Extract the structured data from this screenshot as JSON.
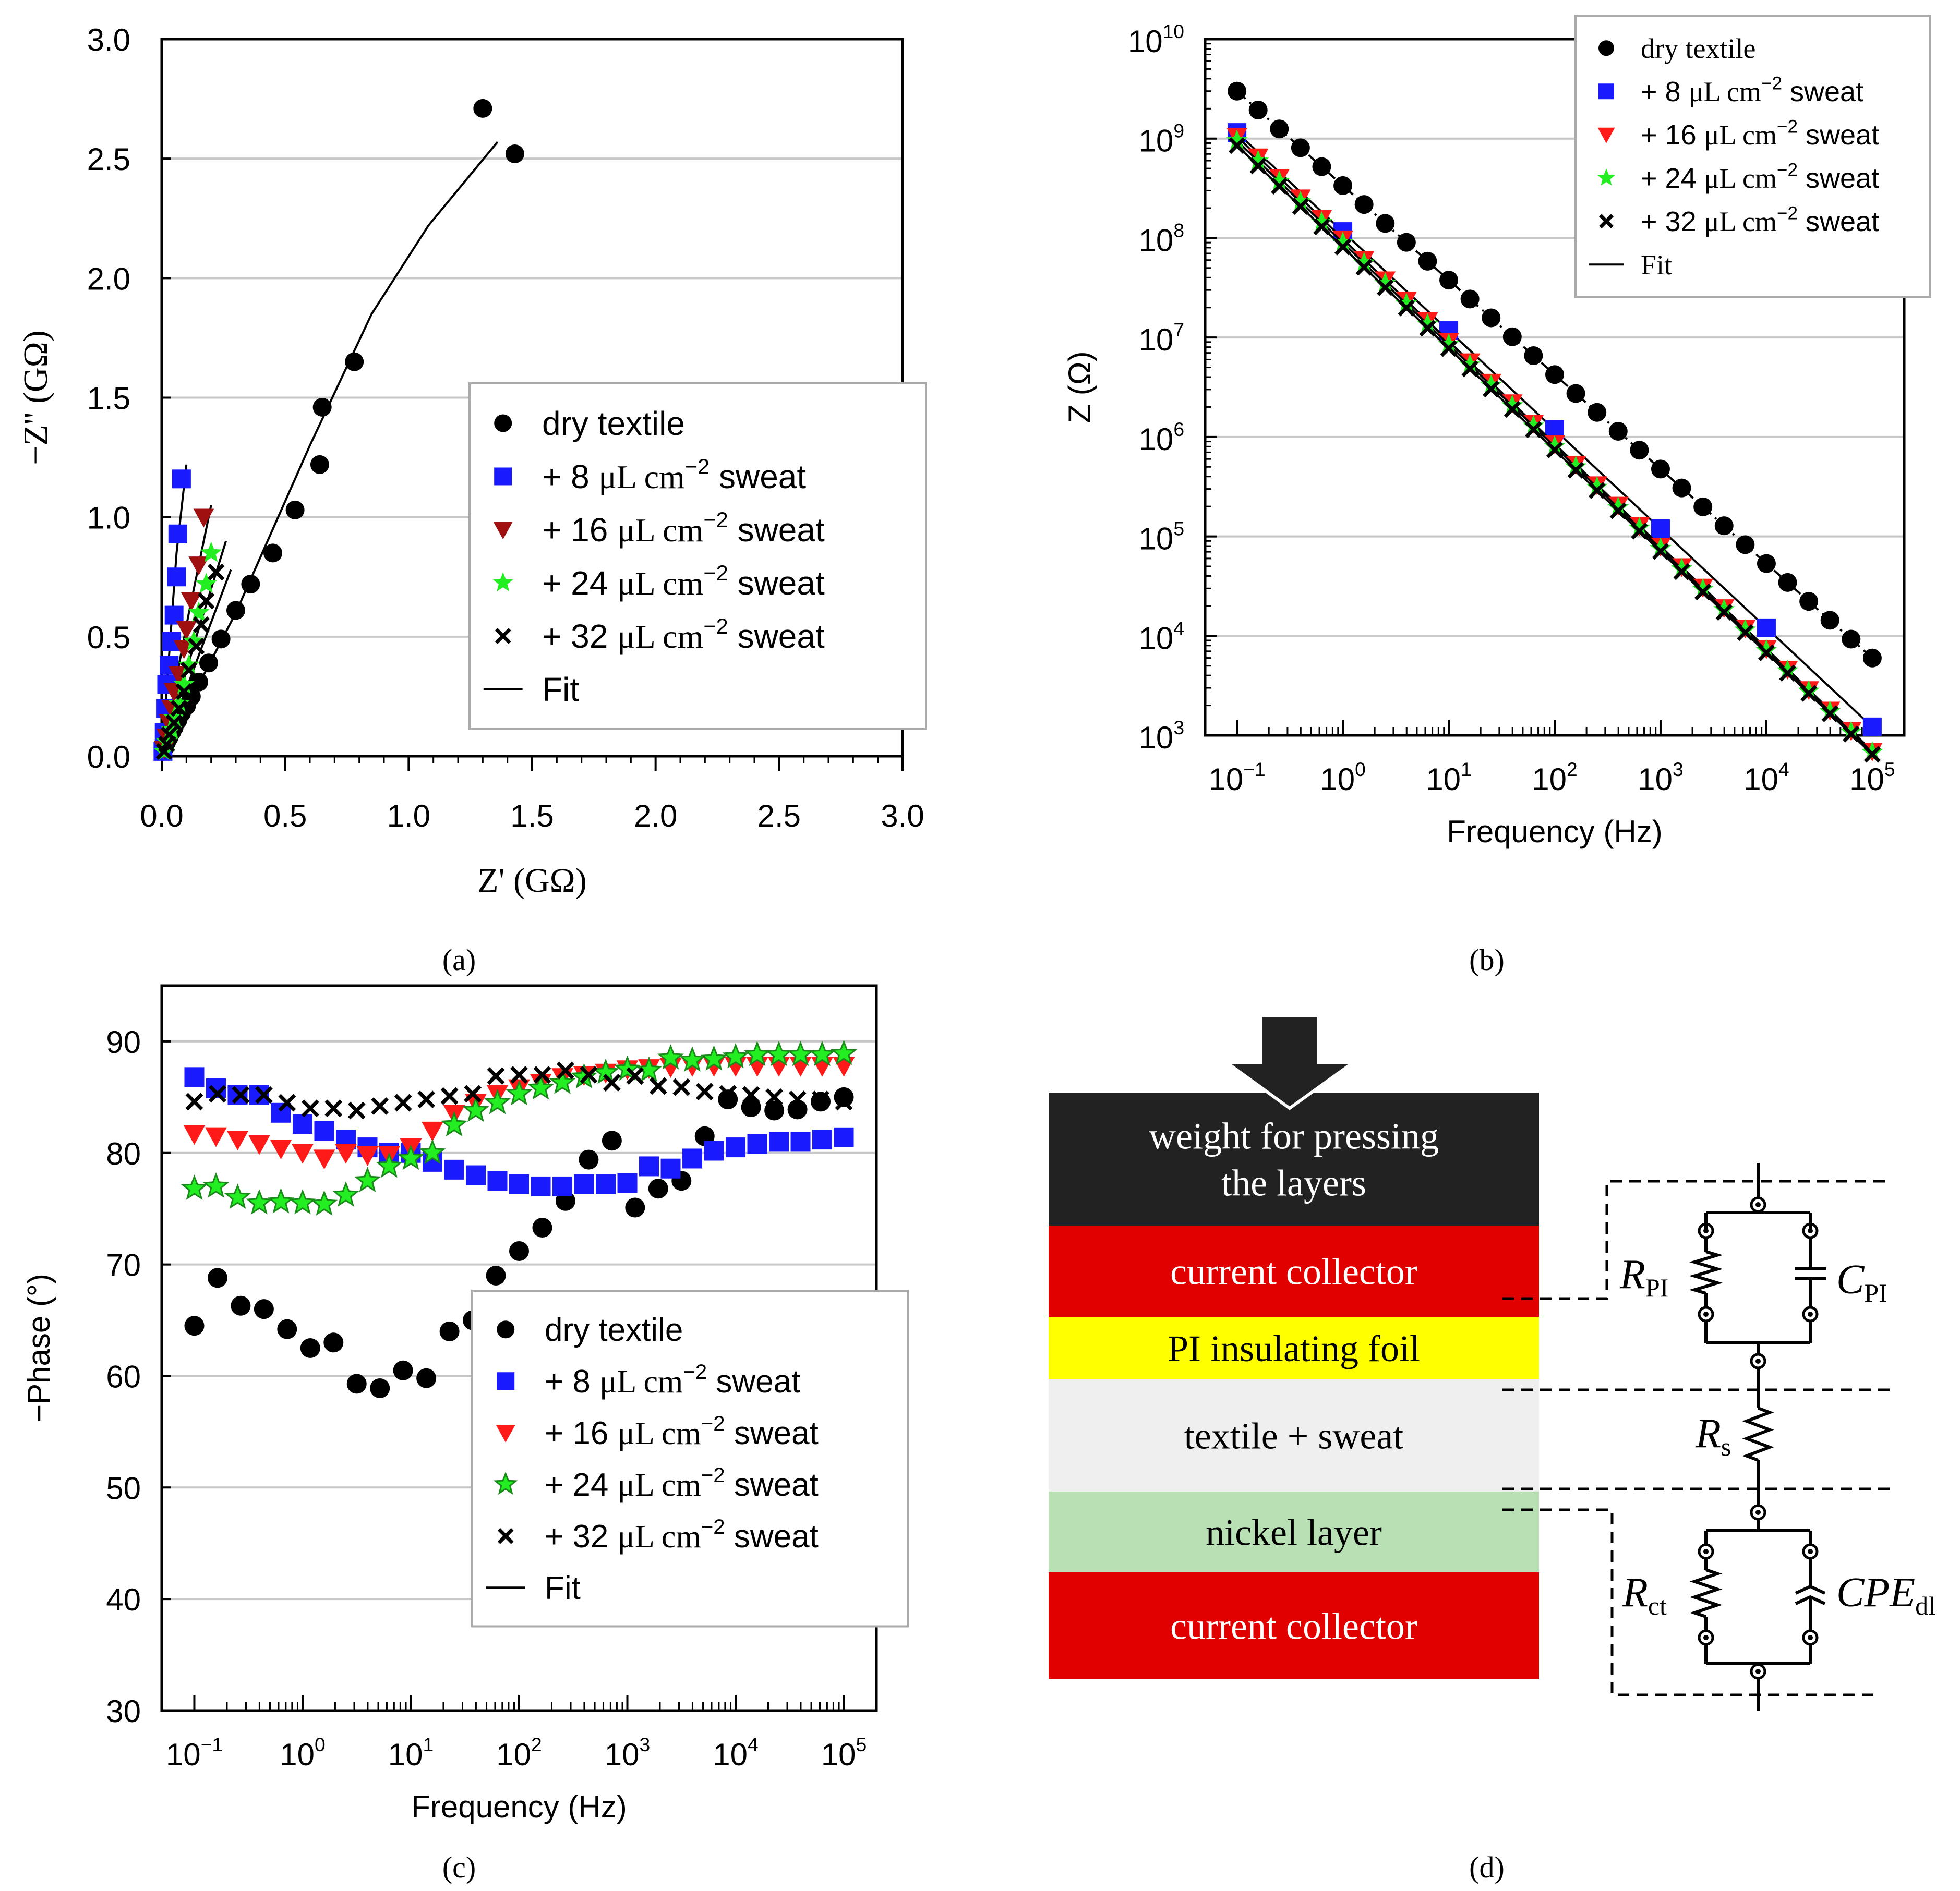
{
  "colors": {
    "dry": "#000000",
    "s8": "#1a1aff",
    "s16": "#ff1a1a",
    "s16_dark": "#a01010",
    "s24": "#22ee22",
    "s24_dark": "#1a8a1a",
    "s32": "#000000",
    "grid": "#c8c8c8",
    "red_layer": "#e00000",
    "yellow_layer": "#ffff00",
    "grey_layer": "#efefef",
    "green_layer": "#b8e0b4",
    "black_layer": "#222222"
  },
  "labels": {
    "panel_a": "(a)",
    "panel_b": "(b)",
    "panel_c": "(c)",
    "panel_d": "(d)"
  },
  "chart_data": [
    {
      "id": "a",
      "type": "scatter",
      "title": "",
      "xlabel": "Z' (GΩ)",
      "ylabel": "−Z'' (GΩ)",
      "xlim": [
        0,
        3
      ],
      "ylim": [
        0,
        3
      ],
      "xticks": [
        "0.0",
        "0.5",
        "1.0",
        "1.5",
        "2.0",
        "2.5",
        "3.0"
      ],
      "yticks": [
        "0.0",
        "0.5",
        "1.0",
        "1.5",
        "2.0",
        "2.5",
        "3.0"
      ],
      "legend": [
        {
          "key": "dry",
          "marker": "circle",
          "label": "dry textile"
        },
        {
          "key": "s8",
          "marker": "square",
          "label": "+   8 μL cm⁻² sweat"
        },
        {
          "key": "s16",
          "marker": "tri-down",
          "label": "+ 16 μL cm⁻² sweat"
        },
        {
          "key": "s24",
          "marker": "star",
          "label": "+ 24 μL cm⁻² sweat"
        },
        {
          "key": "s32",
          "marker": "cross",
          "label": "+ 32 μL cm⁻² sweat"
        },
        {
          "key": "fit",
          "marker": "line",
          "label": "Fit"
        }
      ],
      "series": [
        {
          "name": "dry textile",
          "key": "dry",
          "marker": "circle",
          "x": [
            0.005,
            0.01,
            0.02,
            0.03,
            0.04,
            0.05,
            0.065,
            0.08,
            0.1,
            0.12,
            0.15,
            0.19,
            0.24,
            0.3,
            0.36,
            0.45,
            0.54,
            0.64,
            0.65,
            0.78,
            1.3,
            1.43
          ],
          "y": [
            0.02,
            0.04,
            0.06,
            0.08,
            0.1,
            0.12,
            0.15,
            0.18,
            0.21,
            0.25,
            0.31,
            0.39,
            0.49,
            0.61,
            0.72,
            0.85,
            1.03,
            1.22,
            1.46,
            1.65,
            2.71,
            2.52
          ]
        },
        {
          "name": "+ 8 μL cm⁻² sweat",
          "key": "s8",
          "marker": "square",
          "x": [
            0.005,
            0.01,
            0.015,
            0.02,
            0.03,
            0.04,
            0.05,
            0.06,
            0.065,
            0.08
          ],
          "y": [
            0.02,
            0.1,
            0.2,
            0.3,
            0.38,
            0.48,
            0.59,
            0.75,
            0.93,
            1.16
          ]
        },
        {
          "name": "+ 16 μL cm⁻² sweat",
          "key": "s16",
          "marker": "tri-down",
          "x": [
            0.01,
            0.02,
            0.03,
            0.04,
            0.05,
            0.07,
            0.09,
            0.1,
            0.12,
            0.15,
            0.17
          ],
          "y": [
            0.03,
            0.08,
            0.14,
            0.2,
            0.27,
            0.34,
            0.45,
            0.53,
            0.65,
            0.8,
            1.0
          ]
        },
        {
          "name": "+ 24 μL cm⁻² sweat",
          "key": "s24",
          "marker": "star",
          "x": [
            0.01,
            0.02,
            0.04,
            0.05,
            0.07,
            0.09,
            0.11,
            0.13,
            0.15,
            0.18,
            0.2
          ],
          "y": [
            0.02,
            0.06,
            0.11,
            0.16,
            0.22,
            0.3,
            0.38,
            0.48,
            0.6,
            0.72,
            0.85
          ]
        },
        {
          "name": "+ 32 μL cm⁻² sweat",
          "key": "s32",
          "marker": "cross",
          "x": [
            0.01,
            0.02,
            0.03,
            0.05,
            0.07,
            0.09,
            0.11,
            0.14,
            0.16,
            0.18,
            0.22
          ],
          "y": [
            0.02,
            0.05,
            0.09,
            0.14,
            0.2,
            0.27,
            0.36,
            0.46,
            0.55,
            0.65,
            0.77
          ]
        }
      ],
      "fits": [
        {
          "key": "dry",
          "x": [
            0,
            0.3,
            0.6,
            0.85,
            1.08,
            1.36
          ],
          "y": [
            0,
            0.6,
            1.3,
            1.85,
            2.22,
            2.57
          ]
        },
        {
          "key": "s8",
          "x": [
            0,
            0.06,
            0.1
          ],
          "y": [
            0,
            0.85,
            1.22
          ]
        },
        {
          "key": "s16",
          "x": [
            0,
            0.11,
            0.2
          ],
          "y": [
            0,
            0.6,
            1.05
          ]
        },
        {
          "key": "s24",
          "x": [
            0,
            0.14,
            0.26
          ],
          "y": [
            0,
            0.5,
            0.9
          ]
        },
        {
          "key": "s32",
          "x": [
            0,
            0.16,
            0.28
          ],
          "y": [
            0,
            0.45,
            0.78
          ]
        }
      ]
    },
    {
      "id": "b",
      "type": "scatter",
      "title": "",
      "xlabel": "Frequency (Hz)",
      "ylabel": "Z (Ω)",
      "xscale": "log",
      "yscale": "log",
      "xlim": [
        0.05,
        200000
      ],
      "ylim": [
        1000,
        10000000000
      ],
      "xticks": [
        {
          "base": "10",
          "exp": "−1"
        },
        {
          "base": "10",
          "exp": "0"
        },
        {
          "base": "10",
          "exp": "1"
        },
        {
          "base": "10",
          "exp": "2"
        },
        {
          "base": "10",
          "exp": "3"
        },
        {
          "base": "10",
          "exp": "4"
        },
        {
          "base": "10",
          "exp": "5"
        }
      ],
      "yticks": [
        {
          "base": "10",
          "exp": "3"
        },
        {
          "base": "10",
          "exp": "4"
        },
        {
          "base": "10",
          "exp": "5"
        },
        {
          "base": "10",
          "exp": "6"
        },
        {
          "base": "10",
          "exp": "7"
        },
        {
          "base": "10",
          "exp": "8"
        },
        {
          "base": "10",
          "exp": "9"
        },
        {
          "base": "10",
          "exp": "10"
        }
      ],
      "legend": [
        {
          "key": "dry",
          "marker": "circle",
          "label": "dry textile"
        },
        {
          "key": "s8",
          "marker": "square",
          "label": "+   8 μL cm⁻² sweat"
        },
        {
          "key": "s16",
          "marker": "tri-down",
          "label": "+ 16 μL cm⁻² sweat"
        },
        {
          "key": "s24",
          "marker": "star",
          "label": "+ 24 μL cm⁻² sweat"
        },
        {
          "key": "s32",
          "marker": "cross",
          "label": "+ 32 μL cm⁻² sweat"
        },
        {
          "key": "fit",
          "marker": "line",
          "label": "Fit"
        }
      ],
      "series": [
        {
          "name": "dry textile",
          "key": "dry",
          "marker": "circle",
          "z_at_0_1Hz": 3000000000,
          "slope": -0.95
        },
        {
          "name": "+ 8 μL cm⁻² sweat",
          "key": "s8",
          "marker": "square",
          "z_at_0_1Hz": 1150000000,
          "slope": -0.996
        },
        {
          "name": "+ 16 μL cm⁻² sweat",
          "key": "s16",
          "marker": "tri-down",
          "z_at_0_1Hz": 1050000000,
          "slope": -1.03
        },
        {
          "name": "+ 24 μL cm⁻² sweat",
          "key": "s24",
          "marker": "star",
          "z_at_0_1Hz": 950000000,
          "slope": -1.025
        },
        {
          "name": "+ 32 μL cm⁻² sweat",
          "key": "s32",
          "marker": "cross",
          "z_at_0_1Hz": 850000000,
          "slope": -1.02
        }
      ]
    },
    {
      "id": "c",
      "type": "scatter",
      "title": "",
      "xlabel": "Frequency (Hz)",
      "ylabel": "−Phase (°)",
      "xscale": "log",
      "xlim": [
        0.05,
        200000
      ],
      "ylim": [
        30,
        95
      ],
      "xticks": [
        {
          "base": "10",
          "exp": "−1"
        },
        {
          "base": "10",
          "exp": "0"
        },
        {
          "base": "10",
          "exp": "1"
        },
        {
          "base": "10",
          "exp": "2"
        },
        {
          "base": "10",
          "exp": "3"
        },
        {
          "base": "10",
          "exp": "4"
        },
        {
          "base": "10",
          "exp": "5"
        }
      ],
      "yticks": [
        "30",
        "40",
        "50",
        "60",
        "70",
        "80",
        "90"
      ],
      "legend": [
        {
          "key": "dry",
          "marker": "circle",
          "label": "dry textile"
        },
        {
          "key": "s8",
          "marker": "square",
          "label": "+   8 μL cm⁻² sweat"
        },
        {
          "key": "s16",
          "marker": "tri-down",
          "label": "+ 16 μL cm⁻² sweat"
        },
        {
          "key": "s24",
          "marker": "star",
          "label": "+ 24 μL cm⁻² sweat"
        },
        {
          "key": "s32",
          "marker": "cross",
          "label": "+ 32 μL cm⁻² sweat"
        },
        {
          "key": "fit",
          "marker": "line",
          "label": "Fit"
        }
      ],
      "series": [
        {
          "name": "dry textile",
          "key": "dry",
          "marker": "circle",
          "phase": [
            64.5,
            68.8,
            66.3,
            66.0,
            64.2,
            62.5,
            63.0,
            59.3,
            58.9,
            60.5,
            59.8,
            64.0,
            65.0,
            69.0,
            71.2,
            73.3,
            75.7,
            79.4,
            81.1,
            75.1,
            76.8,
            77.5,
            81.5,
            84.8,
            84.1,
            83.8,
            83.9,
            84.6,
            85.0
          ]
        },
        {
          "name": "+ 8 μL cm⁻² sweat",
          "key": "s8",
          "marker": "square",
          "phase": [
            86.8,
            85.8,
            85.2,
            85.2,
            83.6,
            82.6,
            82.0,
            81.2,
            80.5,
            80.0,
            80.0,
            79.2,
            78.5,
            78.0,
            77.5,
            77.2,
            77.0,
            77.0,
            77.2,
            77.2,
            77.3,
            78.8,
            78.6,
            79.5,
            80.2,
            80.5,
            80.8,
            81.0,
            81.0,
            81.2,
            81.4
          ]
        },
        {
          "name": "+ 16 μL cm⁻² sweat",
          "key": "s16",
          "marker": "tri-down",
          "phase": [
            81.7,
            81.5,
            81.2,
            80.8,
            80.4,
            80.0,
            79.5,
            80.0,
            79.8,
            79.8,
            80.5,
            82.0,
            83.5,
            84.5,
            85.3,
            85.8,
            86.3,
            86.8,
            87.0,
            87.2,
            87.5,
            87.6,
            87.7,
            87.8,
            87.8,
            87.8,
            87.8,
            87.8,
            87.8,
            87.8,
            87.8
          ]
        },
        {
          "name": "+ 24 μL cm⁻² sweat",
          "key": "s24",
          "marker": "star",
          "phase": [
            76.8,
            77.0,
            76.0,
            75.5,
            75.6,
            75.5,
            75.4,
            76.2,
            77.5,
            78.8,
            79.5,
            80.0,
            82.5,
            83.8,
            84.5,
            85.3,
            85.8,
            86.3,
            86.8,
            87.2,
            87.5,
            87.4,
            88.5,
            88.3,
            88.4,
            88.6,
            88.8,
            88.8,
            88.8,
            88.8,
            88.9
          ]
        },
        {
          "name": "+ 32 μL cm⁻² sweat",
          "key": "s32",
          "marker": "cross",
          "phase": [
            84.6,
            85.3,
            85.2,
            85.2,
            84.5,
            84.0,
            84.0,
            83.8,
            84.2,
            84.5,
            84.8,
            85.1,
            85.3,
            86.9,
            87.0,
            87.0,
            87.4,
            87.0,
            86.3,
            86.9,
            86.0,
            85.9,
            85.5,
            85.3,
            85.2,
            85.0,
            84.8,
            84.8,
            84.6
          ]
        }
      ]
    }
  ],
  "diagram": {
    "layers": [
      {
        "key": "weight",
        "label_lines": [
          "weight for pressing",
          "the layers"
        ]
      },
      {
        "key": "cc_top",
        "label_lines": [
          "current collector"
        ]
      },
      {
        "key": "pi",
        "label_lines": [
          "PI   insulating foil"
        ]
      },
      {
        "key": "textile",
        "label_lines": [
          "textile + sweat"
        ]
      },
      {
        "key": "nickel",
        "label_lines": [
          "nickel layer"
        ]
      },
      {
        "key": "cc_bottom",
        "label_lines": [
          "current collector"
        ]
      }
    ],
    "components": [
      {
        "key": "RPI",
        "main": "R",
        "sub": "PI"
      },
      {
        "key": "CPI",
        "main": "C",
        "sub": "PI"
      },
      {
        "key": "Rs",
        "main": "R",
        "sub": "s"
      },
      {
        "key": "Rct",
        "main": "R",
        "sub": "ct"
      },
      {
        "key": "CPEdl",
        "main": "CPE",
        "sub": "dl"
      }
    ]
  }
}
